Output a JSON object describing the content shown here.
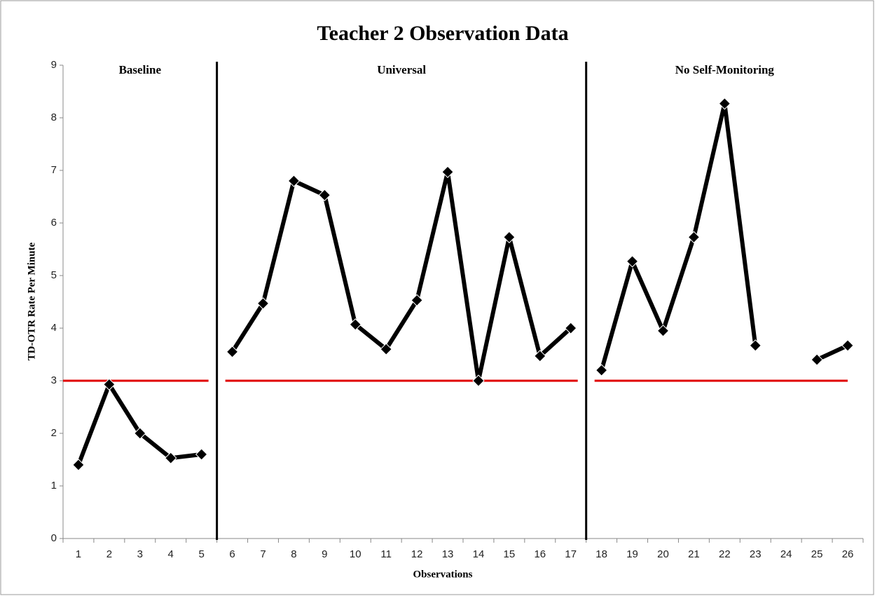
{
  "chart_data": {
    "type": "line",
    "title": "Teacher 2 Observation Data",
    "xlabel": "Observations",
    "ylabel": "TD-OTR Rate Per Minute",
    "categories": [
      "1",
      "2",
      "3",
      "4",
      "5",
      "6",
      "7",
      "8",
      "9",
      "10",
      "11",
      "12",
      "13",
      "14",
      "15",
      "16",
      "17",
      "18",
      "19",
      "20",
      "21",
      "22",
      "23",
      "24",
      "25",
      "26"
    ],
    "series": [
      {
        "name": "Baseline",
        "color": "#000000",
        "values": [
          1.4,
          2.93,
          2.0,
          1.53,
          1.6,
          null,
          null,
          null,
          null,
          null,
          null,
          null,
          null,
          null,
          null,
          null,
          null,
          null,
          null,
          null,
          null,
          null,
          null,
          null,
          null,
          null
        ]
      },
      {
        "name": "Universal",
        "color": "#000000",
        "values": [
          null,
          null,
          null,
          null,
          null,
          3.55,
          4.47,
          6.8,
          6.53,
          4.07,
          3.6,
          4.53,
          6.97,
          3.0,
          5.73,
          3.47,
          4.0,
          null,
          null,
          null,
          null,
          null,
          null,
          null,
          null,
          null
        ]
      },
      {
        "name": "No Self-Monitoring",
        "color": "#000000",
        "values": [
          null,
          null,
          null,
          null,
          null,
          null,
          null,
          null,
          null,
          null,
          null,
          null,
          null,
          null,
          null,
          null,
          null,
          3.2,
          5.27,
          3.95,
          5.73,
          8.27,
          3.67,
          null,
          3.4,
          3.67
        ]
      }
    ],
    "threshold": 3,
    "threshold_color": "#e00000",
    "ylim": [
      0,
      9
    ],
    "yticks": [
      0,
      1,
      2,
      3,
      4,
      5,
      6,
      7,
      8,
      9
    ]
  }
}
